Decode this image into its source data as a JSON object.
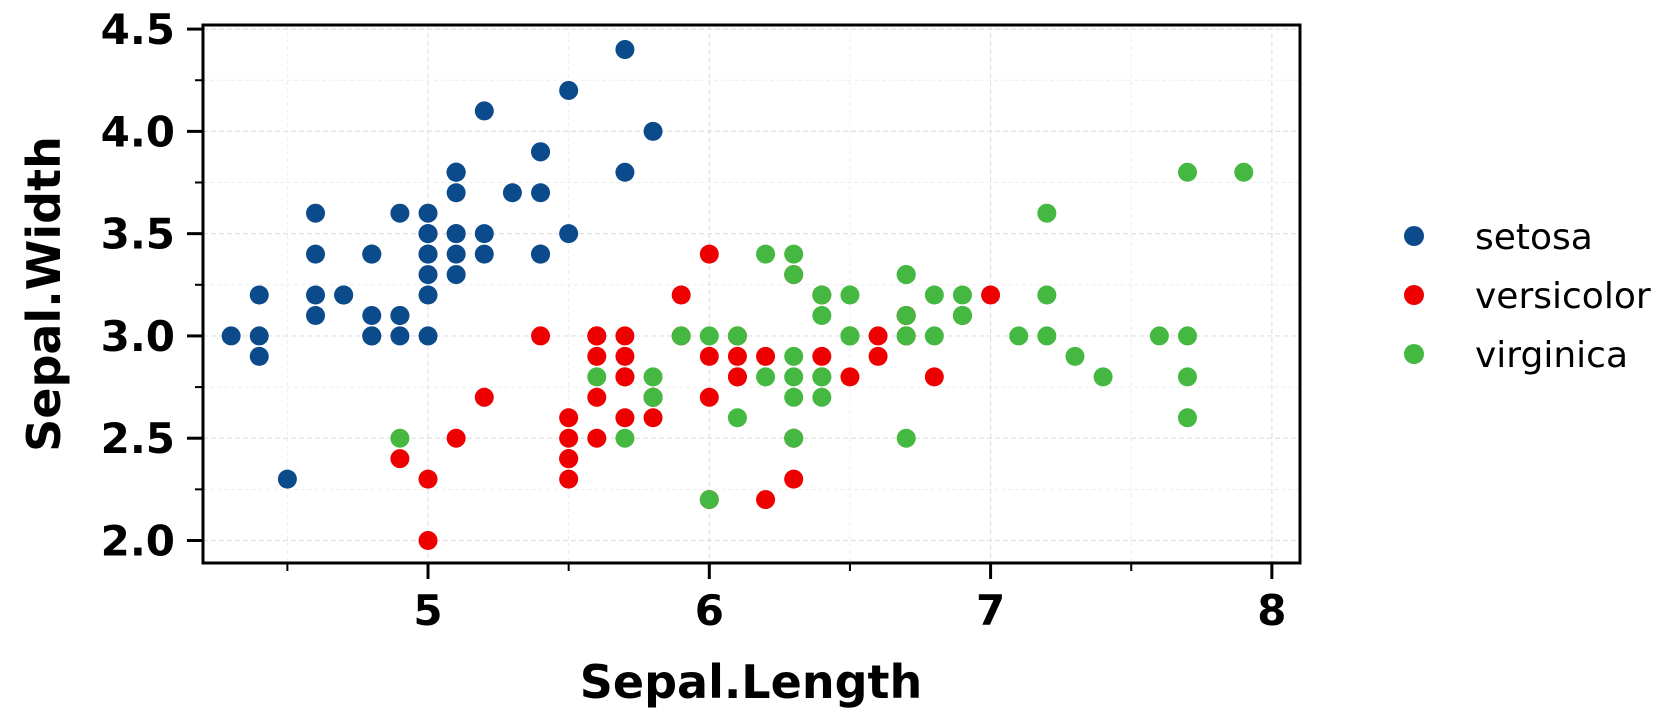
{
  "chart_data": {
    "type": "scatter",
    "title": "",
    "xlabel": "Sepal.Length",
    "ylabel": "Sepal.Width",
    "xlim": [
      4.2,
      8.1
    ],
    "ylim": [
      1.89,
      4.52
    ],
    "x_ticks": [
      5,
      6,
      7,
      8
    ],
    "x_tick_labels": [
      "5",
      "6",
      "7",
      "8"
    ],
    "y_ticks": [
      2.0,
      2.5,
      3.0,
      3.5,
      4.0,
      4.5
    ],
    "y_tick_labels": [
      "2.0",
      "2.5",
      "3.0",
      "3.5",
      "4.0",
      "4.5"
    ],
    "grid": true,
    "legend_position": "right",
    "series": [
      {
        "name": "setosa",
        "color": "#0b4a8b",
        "x": [
          5.1,
          4.9,
          4.7,
          4.6,
          5.0,
          5.4,
          4.6,
          5.0,
          4.4,
          4.9,
          5.4,
          4.8,
          4.8,
          4.3,
          5.8,
          5.7,
          5.4,
          5.1,
          5.7,
          5.1,
          5.4,
          5.1,
          4.6,
          5.1,
          4.8,
          5.0,
          5.0,
          5.2,
          5.2,
          4.7,
          4.8,
          5.4,
          5.2,
          5.5,
          4.9,
          5.0,
          5.5,
          4.9,
          4.4,
          5.1,
          5.0,
          4.5,
          4.4,
          5.0,
          5.1,
          4.8,
          5.1,
          4.6,
          5.3,
          5.0
        ],
        "y": [
          3.5,
          3.0,
          3.2,
          3.1,
          3.6,
          3.9,
          3.4,
          3.4,
          2.9,
          3.1,
          3.7,
          3.4,
          3.0,
          3.0,
          4.0,
          4.4,
          3.9,
          3.5,
          3.8,
          3.8,
          3.4,
          3.7,
          3.6,
          3.3,
          3.4,
          3.0,
          3.4,
          3.5,
          3.4,
          3.2,
          3.1,
          3.4,
          4.1,
          4.2,
          3.1,
          3.2,
          3.5,
          3.6,
          3.0,
          3.4,
          3.5,
          2.3,
          3.2,
          3.5,
          3.8,
          3.0,
          3.8,
          3.2,
          3.7,
          3.3
        ]
      },
      {
        "name": "versicolor",
        "color": "#ee0000",
        "x": [
          7.0,
          6.4,
          6.9,
          5.5,
          6.5,
          5.7,
          6.3,
          4.9,
          6.6,
          5.2,
          5.0,
          5.9,
          6.0,
          6.1,
          5.6,
          6.7,
          5.6,
          5.8,
          6.2,
          5.6,
          5.9,
          6.1,
          6.3,
          6.1,
          6.4,
          6.6,
          6.8,
          6.7,
          6.0,
          5.7,
          5.5,
          5.5,
          5.8,
          6.0,
          5.4,
          6.0,
          6.7,
          6.3,
          5.6,
          5.5,
          5.5,
          6.1,
          5.8,
          5.0,
          5.6,
          5.7,
          5.7,
          6.2,
          5.1,
          5.7
        ],
        "y": [
          3.2,
          3.2,
          3.1,
          2.3,
          2.8,
          2.8,
          3.3,
          2.4,
          2.9,
          2.7,
          2.0,
          3.0,
          2.2,
          2.9,
          2.9,
          3.1,
          3.0,
          2.7,
          2.2,
          2.5,
          3.2,
          2.8,
          2.5,
          2.8,
          2.9,
          3.0,
          2.8,
          3.0,
          2.9,
          2.6,
          2.4,
          2.4,
          2.7,
          2.7,
          3.0,
          3.4,
          3.1,
          2.3,
          3.0,
          2.5,
          2.6,
          3.0,
          2.6,
          2.3,
          2.7,
          3.0,
          2.9,
          2.9,
          2.5,
          2.8
        ]
      },
      {
        "name": "virginica",
        "color": "#44b840",
        "x": [
          6.3,
          5.8,
          7.1,
          6.3,
          6.5,
          7.6,
          4.9,
          7.3,
          6.7,
          7.2,
          6.5,
          6.4,
          6.8,
          5.7,
          5.8,
          6.4,
          6.5,
          7.7,
          7.7,
          6.0,
          6.9,
          5.6,
          7.7,
          6.3,
          6.7,
          7.2,
          6.2,
          6.1,
          6.4,
          7.2,
          7.4,
          7.9,
          6.4,
          6.3,
          6.1,
          7.7,
          6.3,
          6.4,
          6.0,
          6.9,
          6.7,
          6.9,
          5.8,
          6.8,
          6.7,
          6.7,
          6.3,
          6.5,
          6.2,
          5.9
        ],
        "y": [
          3.3,
          2.7,
          3.0,
          2.9,
          3.0,
          3.0,
          2.5,
          2.9,
          2.5,
          3.6,
          3.2,
          2.7,
          3.0,
          2.5,
          2.8,
          3.2,
          3.0,
          3.8,
          2.6,
          2.2,
          3.2,
          2.8,
          2.8,
          2.7,
          3.3,
          3.2,
          2.8,
          3.0,
          2.8,
          3.0,
          2.8,
          3.8,
          2.8,
          2.8,
          2.6,
          3.0,
          3.4,
          3.1,
          3.0,
          3.1,
          3.1,
          3.1,
          2.7,
          3.2,
          3.3,
          3.0,
          2.5,
          3.0,
          3.4,
          3.0
        ]
      }
    ]
  }
}
